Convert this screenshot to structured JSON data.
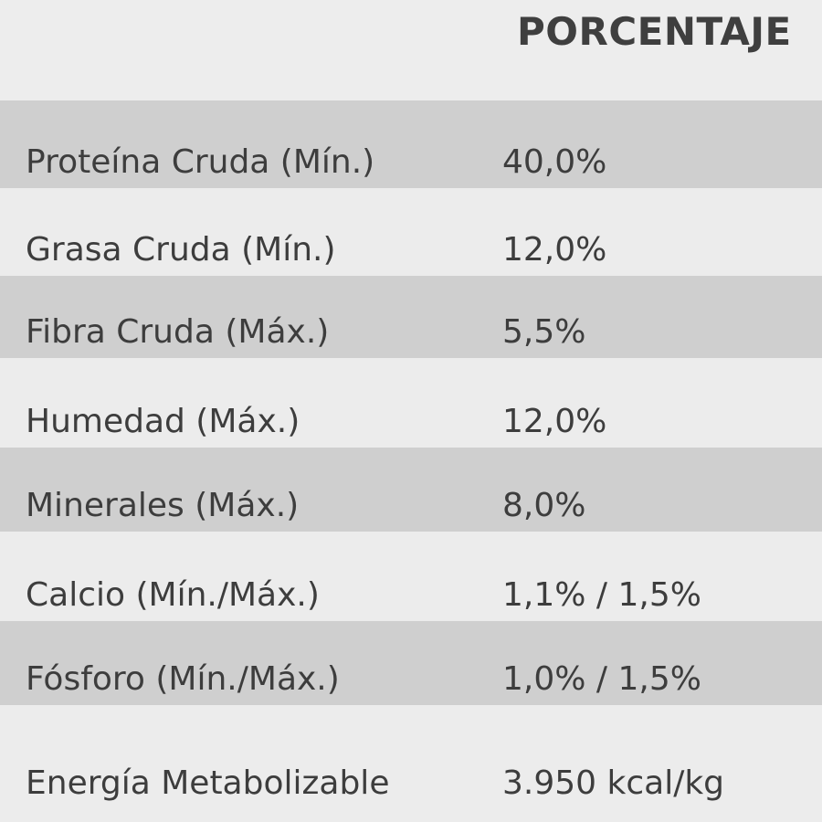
{
  "header": {
    "column_label": "PORCENTAJE"
  },
  "rows": [
    {
      "name": "Proteína Cruda (Mín.)",
      "value": "40,0%"
    },
    {
      "name": "Grasa Cruda (Mín.)",
      "value": "12,0%"
    },
    {
      "name": "Fibra Cruda (Máx.)",
      "value": "5,5%"
    },
    {
      "name": "Humedad (Máx.)",
      "value": "12,0%"
    },
    {
      "name": "Minerales (Máx.)",
      "value": "8,0%"
    },
    {
      "name": "Calcio (Mín./Máx.)",
      "value": "1,1% / 1,5%"
    },
    {
      "name": "Fósforo (Mín./Máx.)",
      "value": "1,0% / 1,5%"
    },
    {
      "name": "Energía Metabolizable",
      "value": "3.950 kcal/kg"
    }
  ],
  "colors": {
    "dark_row": "#cfcfcf",
    "light_row": "#ececec",
    "text": "#3d3d3d"
  }
}
